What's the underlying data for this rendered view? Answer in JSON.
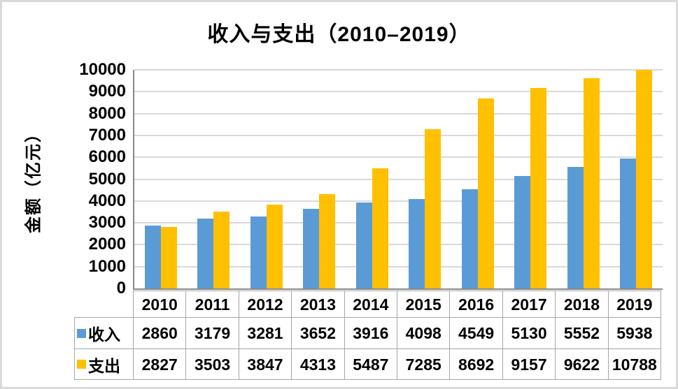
{
  "title": "收入与支出（2010–2019）",
  "chart_data": {
    "type": "bar",
    "title": "收入与支出（2010–2019）",
    "xlabel": "",
    "ylabel": "金额（亿元）",
    "ylim": [
      0,
      10000
    ],
    "yticks": [
      0,
      1000,
      2000,
      3000,
      4000,
      5000,
      6000,
      7000,
      8000,
      9000,
      10000
    ],
    "grid": true,
    "legend_position": "data-table-left",
    "data_table_shown": true,
    "categories": [
      "2010",
      "2011",
      "2012",
      "2013",
      "2014",
      "2015",
      "2016",
      "2017",
      "2018",
      "2019"
    ],
    "series": [
      {
        "key": "income",
        "name": "收入",
        "color": "#5B9BD5",
        "values": [
          2860,
          3179,
          3281,
          3652,
          3916,
          4098,
          4549,
          5130,
          5552,
          5938
        ]
      },
      {
        "key": "expense",
        "name": "支出",
        "color": "#FFC000",
        "values": [
          2827,
          3503,
          3847,
          4313,
          5487,
          7285,
          8692,
          9157,
          9622,
          10788
        ]
      }
    ]
  },
  "colors": {
    "income": "#5B9BD5",
    "expense": "#FFC000",
    "gridline": "#D9D9D9",
    "axis_line": "#898989",
    "table_border": "#A6A6A6",
    "frame_border": "#D9D9D9",
    "text": "#000000",
    "background": "#FFFFFF"
  }
}
